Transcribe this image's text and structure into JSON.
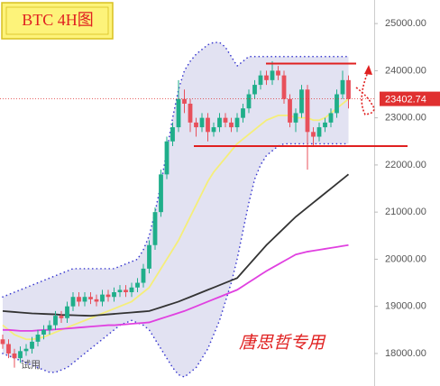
{
  "chart_data": {
    "type": "candlestick",
    "title": "BTC 4H图",
    "watermark": "唐思哲专用",
    "badge": "试用",
    "up_color": "#1fae8a",
    "down_color": "#e8505b",
    "open": [
      18300,
      18200,
      18000,
      17900,
      18050,
      18100,
      18250,
      18400,
      18500,
      18600,
      18800,
      18750,
      19000,
      19200,
      19100,
      19200,
      19150,
      19100,
      19250,
      19200,
      19300,
      19350,
      19300,
      19400,
      19500,
      19800,
      20300,
      21000,
      21800,
      22500,
      22800,
      23400,
      23300,
      22900,
      22800,
      23000,
      22700,
      22800,
      23000,
      22900,
      22800,
      23000,
      23200,
      23500,
      23700,
      23900,
      23800,
      24000,
      23900,
      23400,
      22900,
      23100,
      23600,
      22700,
      22600,
      22800,
      22900,
      23100,
      23500,
      23800
    ],
    "high": [
      18400,
      18300,
      18100,
      18150,
      18200,
      18350,
      18500,
      18600,
      18700,
      18900,
      18900,
      19100,
      19300,
      19300,
      19300,
      19300,
      19250,
      19350,
      19350,
      19400,
      19450,
      19450,
      19500,
      19600,
      19900,
      20400,
      21100,
      21900,
      22600,
      22900,
      23800,
      23600,
      23400,
      23000,
      23100,
      23100,
      22900,
      23100,
      23100,
      23000,
      23100,
      23300,
      23600,
      23800,
      24000,
      24000,
      24200,
      24100,
      24000,
      23500,
      23200,
      23700,
      23700,
      22800,
      22900,
      23000,
      23200,
      23600,
      24000,
      23900
    ],
    "low": [
      18100,
      17900,
      17700,
      17800,
      17950,
      18000,
      18150,
      18300,
      18400,
      18500,
      18650,
      18650,
      18900,
      19000,
      19000,
      19050,
      19000,
      19000,
      19100,
      19100,
      19200,
      19200,
      19200,
      19300,
      19400,
      19700,
      20200,
      20900,
      21700,
      22400,
      22700,
      23100,
      22700,
      22600,
      22700,
      22500,
      22600,
      22700,
      22800,
      22700,
      22700,
      22900,
      23100,
      23400,
      23600,
      23700,
      23700,
      23800,
      23300,
      22800,
      22700,
      23000,
      21900,
      22400,
      22500,
      22700,
      22800,
      23000,
      23400,
      23200
    ],
    "close": [
      18200,
      18000,
      17900,
      18050,
      18100,
      18250,
      18400,
      18500,
      18600,
      18800,
      18750,
      19000,
      19200,
      19100,
      19200,
      19150,
      19100,
      19250,
      19200,
      19300,
      19350,
      19300,
      19400,
      19500,
      19800,
      20300,
      21000,
      21800,
      22500,
      22800,
      23400,
      23300,
      22900,
      22800,
      23000,
      22700,
      22800,
      23000,
      22900,
      22800,
      23000,
      23200,
      23500,
      23700,
      23900,
      23800,
      24000,
      23900,
      23400,
      22900,
      23100,
      23600,
      22700,
      22600,
      22800,
      22900,
      23100,
      23500,
      23800,
      23400
    ],
    "band": {
      "color": "#3a3ad0",
      "fill": "#e2e2f2",
      "upper": [
        19200,
        19250,
        19300,
        19350,
        19400,
        19450,
        19500,
        19550,
        19600,
        19650,
        19700,
        19750,
        19800,
        19800,
        19800,
        19800,
        19800,
        19800,
        19800,
        19800,
        19850,
        19900,
        19950,
        20000,
        20200,
        20500,
        21000,
        21600,
        22300,
        23000,
        23600,
        24000,
        24200,
        24350,
        24450,
        24550,
        24600,
        24600,
        24500,
        24300,
        24100,
        24200,
        24300,
        24300,
        24300,
        24300,
        24300,
        24300,
        24300,
        24300,
        24300,
        24300,
        24300,
        24300,
        24300,
        24300,
        24300,
        24300,
        24300,
        24300
      ],
      "lower": [
        18000,
        17950,
        17900,
        17850,
        17800,
        17750,
        17700,
        17650,
        17600,
        17600,
        17650,
        17700,
        17800,
        17900,
        18000,
        18100,
        18200,
        18300,
        18400,
        18500,
        18600,
        18650,
        18700,
        18650,
        18600,
        18500,
        18300,
        18100,
        17900,
        17700,
        17550,
        17500,
        17600,
        17700,
        17900,
        18100,
        18400,
        18700,
        19100,
        19500,
        20000,
        20600,
        21200,
        21700,
        22000,
        22200,
        22300,
        22400,
        22450,
        22450,
        22450,
        22450,
        22450,
        22450,
        22450,
        22450,
        22450,
        22450,
        22450,
        22450
      ]
    },
    "series": [
      {
        "color": "#f5ee7a",
        "values": [
          18600,
          18500,
          18400,
          18350,
          18300,
          18300,
          18320,
          18350,
          18400,
          18450,
          18500,
          18550,
          18600,
          18650,
          18700,
          18750,
          18800,
          18850,
          18900,
          18950,
          19000,
          19050,
          19100,
          19200,
          19300,
          19400,
          19600,
          19800,
          20000,
          20200,
          20400,
          20650,
          20900,
          21150,
          21400,
          21650,
          21850,
          22000,
          22150,
          22300,
          22450,
          22550,
          22650,
          22750,
          22850,
          22950,
          23000,
          23050,
          23050,
          23050,
          23000,
          23000,
          23000,
          22950,
          22950,
          23000,
          23100,
          23200,
          23300,
          23400
        ]
      },
      {
        "color": "#333333",
        "values": [
          18900,
          18890,
          18880,
          18870,
          18860,
          18850,
          18845,
          18840,
          18835,
          18830,
          18820,
          18816,
          18812,
          18808,
          18804,
          18800,
          18810,
          18820,
          18830,
          18840,
          18850,
          18860,
          18870,
          18880,
          18890,
          18900,
          18940,
          18980,
          19020,
          19060,
          19100,
          19150,
          19200,
          19250,
          19300,
          19350,
          19400,
          19450,
          19500,
          19550,
          19600,
          19740,
          19880,
          20020,
          20160,
          20300,
          20420,
          20540,
          20660,
          20780,
          20900,
          21000,
          21100,
          21200,
          21300,
          21400,
          21500,
          21600,
          21700,
          21800
        ]
      },
      {
        "color": "#e040e0",
        "values": [
          18500,
          18500,
          18490,
          18480,
          18480,
          18480,
          18490,
          18500,
          18500,
          18510,
          18520,
          18530,
          18540,
          18550,
          18560,
          18570,
          18580,
          18590,
          18600,
          18600,
          18610,
          18620,
          18630,
          18640,
          18650,
          18660,
          18700,
          18740,
          18780,
          18820,
          18860,
          18900,
          18950,
          19000,
          19050,
          19100,
          19150,
          19200,
          19250,
          19300,
          19350,
          19430,
          19510,
          19590,
          19670,
          19750,
          19820,
          19890,
          19960,
          20030,
          20100,
          20130,
          20160,
          20180,
          20200,
          20220,
          20240,
          20260,
          20280,
          20300
        ]
      }
    ],
    "levels": [
      {
        "value": 24150,
        "color": "#e02020"
      },
      {
        "value": 22400,
        "color": "#e02020"
      }
    ],
    "last_price": {
      "value": 23402.74,
      "label": "23402.74",
      "color": "#e03030"
    },
    "ylim": [
      17310,
      25500
    ],
    "yticks": [
      {
        "value": 18000,
        "label": "18000.00"
      },
      {
        "value": 19000,
        "label": "19000.00"
      },
      {
        "value": 20000,
        "label": "20000.00"
      },
      {
        "value": 21000,
        "label": "21000.00"
      },
      {
        "value": 22000,
        "label": "22000.00"
      },
      {
        "value": 23000,
        "label": "23000.00"
      },
      {
        "value": 24000,
        "label": "24000.00"
      },
      {
        "value": 25000,
        "label": "25000.00"
      }
    ]
  }
}
